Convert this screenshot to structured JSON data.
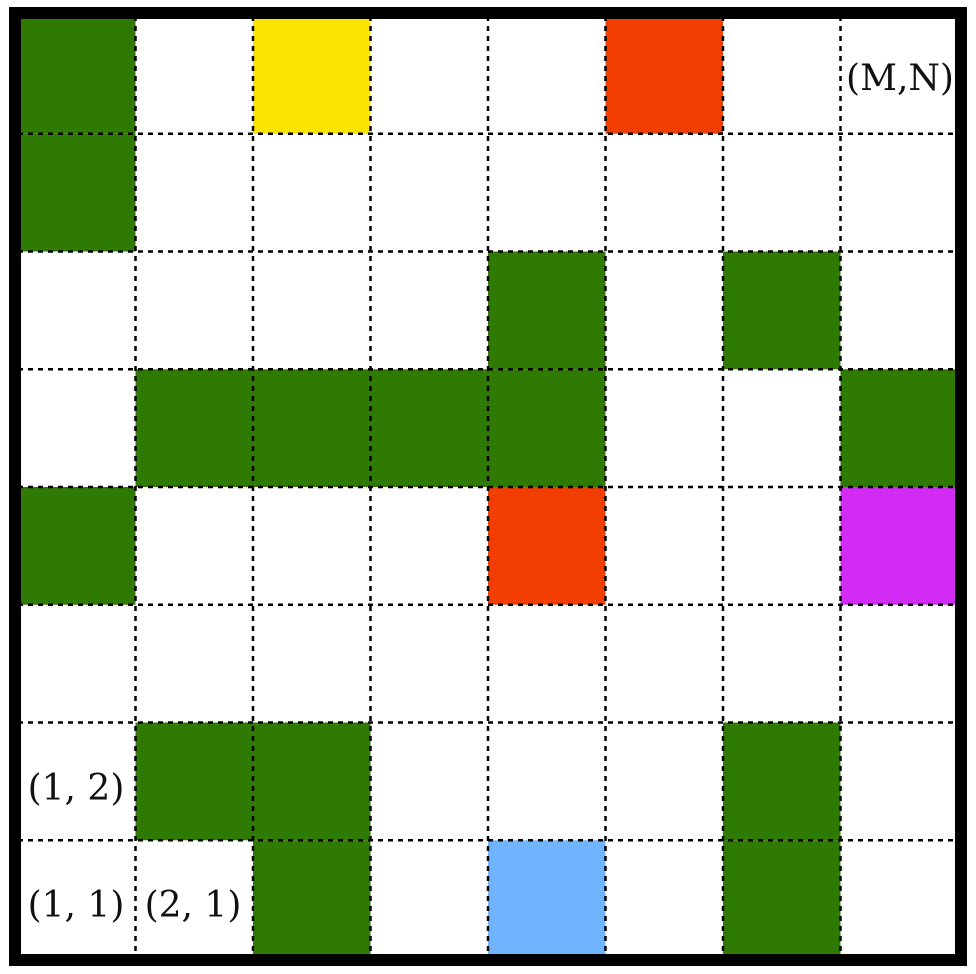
{
  "grid": {
    "columns": 8,
    "rows": 8,
    "cells": [
      {
        "col": 1,
        "row": 8,
        "type": "obstacle"
      },
      {
        "col": 3,
        "row": 8,
        "type": "yellow-cell"
      },
      {
        "col": 6,
        "row": 8,
        "type": "red-cell"
      },
      {
        "col": 1,
        "row": 7,
        "type": "obstacle"
      },
      {
        "col": 5,
        "row": 6,
        "type": "obstacle"
      },
      {
        "col": 7,
        "row": 6,
        "type": "obstacle"
      },
      {
        "col": 2,
        "row": 5,
        "type": "obstacle"
      },
      {
        "col": 3,
        "row": 5,
        "type": "obstacle"
      },
      {
        "col": 4,
        "row": 5,
        "type": "obstacle"
      },
      {
        "col": 5,
        "row": 5,
        "type": "obstacle"
      },
      {
        "col": 8,
        "row": 5,
        "type": "obstacle"
      },
      {
        "col": 1,
        "row": 4,
        "type": "obstacle"
      },
      {
        "col": 5,
        "row": 4,
        "type": "red-cell"
      },
      {
        "col": 8,
        "row": 4,
        "type": "magenta-cell"
      },
      {
        "col": 2,
        "row": 2,
        "type": "obstacle"
      },
      {
        "col": 3,
        "row": 2,
        "type": "obstacle"
      },
      {
        "col": 7,
        "row": 2,
        "type": "obstacle"
      },
      {
        "col": 3,
        "row": 1,
        "type": "obstacle"
      },
      {
        "col": 5,
        "row": 1,
        "type": "blue-cell"
      },
      {
        "col": 7,
        "row": 1,
        "type": "obstacle"
      }
    ]
  },
  "labels": {
    "top_right": "(M,N)",
    "cell_1_2": "(1, 2)",
    "cell_1_1": "(1, 1)",
    "cell_2_1": "(2, 1)"
  },
  "colors": {
    "obstacle": "#2f7a02",
    "yellow-cell": "#fde400",
    "red-cell": "#f23e00",
    "magenta-cell": "#d22bf3",
    "blue-cell": "#70b3ff",
    "border": "#000000",
    "gridline": "#000000",
    "background": "#ffffff"
  }
}
